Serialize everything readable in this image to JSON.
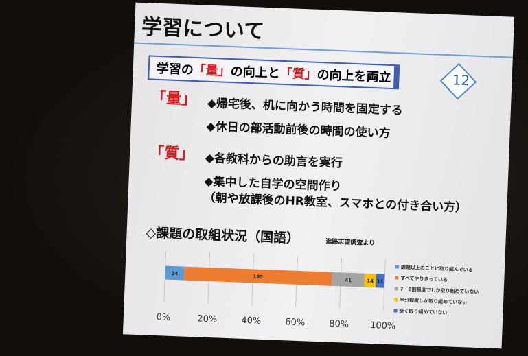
{
  "slide": {
    "title": "学習について",
    "number": "12",
    "headline": [
      "学習の",
      "「量」",
      "の向上と",
      "「質」",
      "の向上を両立"
    ],
    "sections": [
      {
        "label": "「量」",
        "items": [
          "◆帰宅後、机に向かう時間を固定する",
          "◆休日の部活動前後の時間の使い方"
        ]
      },
      {
        "label": "「質」",
        "items": [
          "◆各教科からの助言を実行",
          "◆集中した自学の空間作り",
          "（朝や放課後のHR教室、スマホとの付き合い方）"
        ]
      }
    ]
  },
  "chart_data": {
    "type": "stacked-100-bar",
    "title": "◇課題の取組状況（国語）",
    "source": "進路志望調査より",
    "series": [
      {
        "name": "課題以上のことに取り組んでいる",
        "color": "#5b9bd5",
        "values": [
          24
        ]
      },
      {
        "name": "すべてやりきっている",
        "color": "#ed7d31",
        "values": [
          185
        ]
      },
      {
        "name": "7・8割程度でしか取り組めていない",
        "color": "#a5a5a5",
        "values": [
          41
        ]
      },
      {
        "name": "半分程度しか取り組めていない",
        "color": "#ffc000",
        "values": [
          14
        ]
      },
      {
        "name": "全く取り組めていない",
        "color": "#4472c4",
        "values": [
          11
        ]
      }
    ],
    "xlim": [
      0,
      100
    ],
    "xticks": [
      {
        "value": 0,
        "label": "0%"
      },
      {
        "value": 20,
        "label": "20%"
      },
      {
        "value": 40,
        "label": "40%"
      },
      {
        "value": 60,
        "label": "60%"
      },
      {
        "value": 80,
        "label": "80%"
      },
      {
        "value": 100,
        "label": "100%"
      }
    ],
    "grid": true
  }
}
